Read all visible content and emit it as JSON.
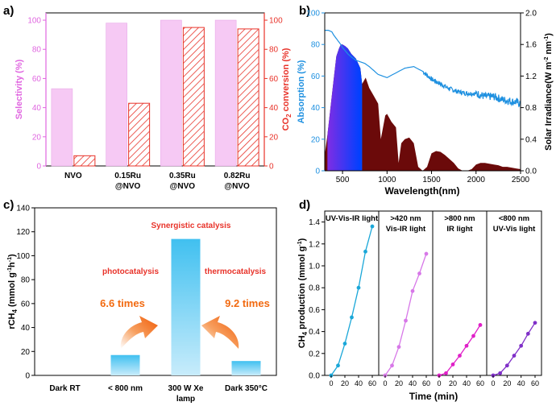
{
  "colors": {
    "pink_bar": "#f6c9f4",
    "pink_axis": "#e066e0",
    "red": "#e8332a",
    "blue": "#1e90e0",
    "irradiance": "#6b0a0a",
    "light_blue": "#5fc8f0",
    "orange": "#f26a10",
    "cyan_line": "#1aa7d8",
    "violet_line": "#d778e8",
    "magenta_line": "#e020c8",
    "purple_line": "#8030c8"
  },
  "chart_data": [
    {
      "panel": "a)",
      "type": "bar",
      "categories": [
        "NVO",
        "0.15Ru\n@NVO",
        "0.35Ru\n@NVO",
        "0.82Ru\n@NVO"
      ],
      "series": [
        {
          "name": "Selectivity (%)",
          "axis": "left",
          "values": [
            53,
            98,
            100,
            100
          ]
        },
        {
          "name": "CO2 conversion (%)",
          "axis": "right",
          "values": [
            7,
            43,
            95,
            94
          ]
        }
      ],
      "ylabel": "Selectivity (%)",
      "y2label_main": "CO",
      "y2label_sub": "2",
      "y2label_rest": " conversion (%)",
      "ylim": [
        0,
        105
      ],
      "yticks": [
        "0",
        "20",
        "40",
        "60",
        "80",
        "100"
      ]
    },
    {
      "panel": "b)",
      "type": "line",
      "xlabel": "Wavelength(nm)",
      "ylabel": "Absorption (%)",
      "y2label": "Solar Irradiance(W m",
      "y2label_sup1": "-2",
      "y2label_mid": " nm",
      "y2label_sup2": "-1",
      "y2label_end": ")",
      "xlim": [
        300,
        2500
      ],
      "ylim": [
        0,
        100
      ],
      "y2lim": [
        0,
        2.0
      ],
      "xticks": [
        "500",
        "1000",
        "1500",
        "2000",
        "2500"
      ],
      "yticks": [
        "0",
        "20",
        "40",
        "60",
        "80",
        "100"
      ],
      "y2ticks": [
        "0.0",
        "0.4",
        "0.8",
        "1.2",
        "1.6",
        "2.0"
      ],
      "absorption": {
        "x": [
          300,
          340,
          380,
          400,
          440,
          480,
          500,
          530,
          560,
          600,
          650,
          700,
          750,
          800,
          900,
          1000,
          1100,
          1200,
          1300,
          1400,
          1500,
          1600,
          1700,
          1800,
          1900,
          2000,
          2100,
          2200,
          2300,
          2400,
          2500
        ],
        "y": [
          89,
          89,
          88,
          86,
          83,
          80,
          78,
          76,
          74,
          72,
          70,
          69,
          68,
          66,
          61,
          59,
          62,
          65,
          66,
          63,
          58,
          55,
          52,
          50,
          49,
          49,
          47,
          47,
          45,
          44,
          43
        ]
      },
      "irradiance": {
        "x": [
          300,
          330,
          360,
          400,
          430,
          460,
          480,
          500,
          530,
          560,
          600,
          650,
          700,
          720,
          760,
          800,
          850,
          900,
          930,
          980,
          1000,
          1050,
          1100,
          1130,
          1160,
          1200,
          1250,
          1300,
          1350,
          1400,
          1450,
          1500,
          1550,
          1600,
          1650,
          1700,
          1750,
          1800,
          1850,
          1900,
          1950,
          2000,
          2050,
          2100,
          2150,
          2200,
          2250,
          2300,
          2350,
          2400,
          2450,
          2500
        ],
        "y": [
          0.2,
          0.45,
          0.75,
          1.15,
          1.45,
          1.55,
          1.6,
          1.6,
          1.58,
          1.55,
          1.48,
          1.42,
          1.3,
          1.1,
          1.18,
          1.05,
          0.95,
          0.85,
          0.4,
          0.7,
          0.72,
          0.62,
          0.55,
          0.1,
          0.35,
          0.4,
          0.42,
          0.35,
          0.05,
          0.0,
          0.05,
          0.22,
          0.25,
          0.24,
          0.2,
          0.15,
          0.1,
          0.03,
          0.0,
          0.0,
          0.02,
          0.08,
          0.1,
          0.1,
          0.09,
          0.08,
          0.07,
          0.05,
          0.05,
          0.04,
          0.03,
          0.02
        ]
      }
    },
    {
      "panel": "c)",
      "type": "bar",
      "categories": [
        "Dark RT",
        "< 800 nm",
        "300 W Xe\nlamp",
        "Dark 350°C"
      ],
      "values": [
        0,
        17,
        114,
        12
      ],
      "ylabel": "rCH",
      "ylabel_sub": "4",
      "ylabel_unit": " (mmol g",
      "ylabel_sup1": "-1",
      "ylabel_h": "h",
      "ylabel_sup2": "-1",
      "ylabel_end": ")",
      "ylim": [
        0,
        140
      ],
      "yticks": [
        "0",
        "20",
        "40",
        "60",
        "80",
        "100",
        "120",
        "140"
      ],
      "annotations": {
        "synergy": "Synergistic catalysis",
        "photo": "photocatalysis",
        "thermo": "thermocatalysis",
        "photo_times": "6.6 times",
        "thermo_times": "9.2 times"
      }
    },
    {
      "panel": "d)",
      "type": "line",
      "xlabel": "Time (min)",
      "ylabel": "CH",
      "ylabel_sub": "4",
      "ylabel_rest": " production (mmol g",
      "ylabel_sup": "-1",
      "ylabel_end": ")",
      "ylim": [
        0,
        1.5
      ],
      "yticks": [
        "0.0",
        "0.2",
        "0.4",
        "0.6",
        "0.8",
        "1.0",
        "1.2",
        "1.4"
      ],
      "xticks": [
        "0",
        "20",
        "40",
        "60"
      ],
      "subpanels": [
        {
          "label1": "UV-Vis-IR light",
          "label2": "",
          "x": [
            0,
            10,
            20,
            30,
            40,
            50,
            60
          ],
          "y": [
            0.0,
            0.09,
            0.29,
            0.53,
            0.8,
            1.13,
            1.36
          ]
        },
        {
          "label1": ">420 nm",
          "label2": "Vis-IR light",
          "x": [
            0,
            10,
            20,
            30,
            40,
            50,
            60
          ],
          "y": [
            0.0,
            0.09,
            0.26,
            0.5,
            0.77,
            0.93,
            1.11
          ]
        },
        {
          "label1": ">800 nm",
          "label2": "IR light",
          "x": [
            0,
            10,
            20,
            30,
            40,
            50,
            60
          ],
          "y": [
            0.0,
            0.02,
            0.1,
            0.18,
            0.27,
            0.36,
            0.46
          ]
        },
        {
          "label1": "<800 nm",
          "label2": "UV-Vis light",
          "x": [
            0,
            10,
            20,
            30,
            40,
            50,
            60
          ],
          "y": [
            0.0,
            0.02,
            0.09,
            0.18,
            0.27,
            0.38,
            0.48
          ]
        }
      ]
    }
  ]
}
